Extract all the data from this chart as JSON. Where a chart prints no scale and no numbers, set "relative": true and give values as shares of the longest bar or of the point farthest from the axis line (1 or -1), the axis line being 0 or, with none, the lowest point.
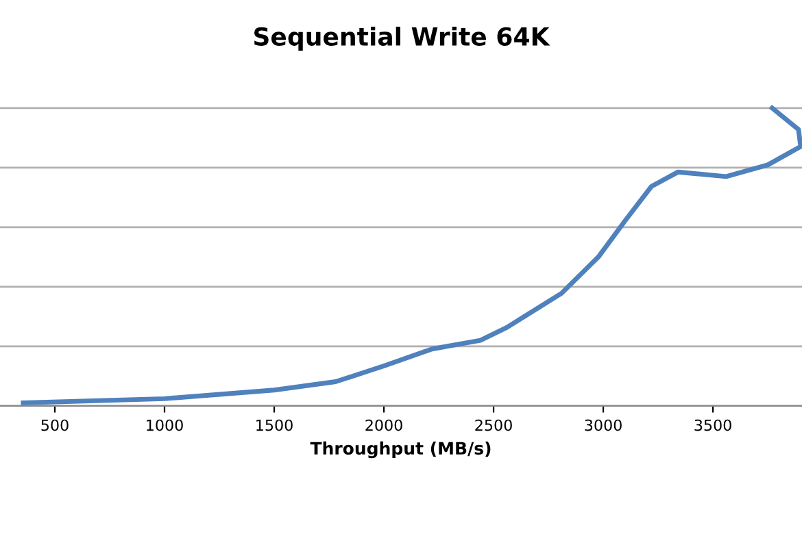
{
  "chart_data": {
    "type": "line",
    "title": "Sequential Write 64K",
    "xlabel": "Throughput (MB/s)",
    "relative": true,
    "xlim": [
      250,
      3906
    ],
    "xticks": [
      500,
      1000,
      1500,
      2000,
      2500,
      3000,
      3500
    ],
    "grid": "y",
    "legend": false,
    "marker": "none",
    "line_style": "solid",
    "series": [
      {
        "color": "#4f81bd",
        "x": [
          356,
          1000,
          1500,
          1780,
          2000,
          2220,
          2440,
          2560,
          2810,
          2980,
          3100,
          3220,
          3340,
          3560,
          3750,
          3900,
          3890,
          3770
        ],
        "values": [
          0.01,
          0.024,
          0.053,
          0.081,
          0.134,
          0.191,
          0.22,
          0.263,
          0.378,
          0.502,
          0.622,
          0.737,
          0.785,
          0.77,
          0.809,
          0.871,
          0.928,
          1
        ]
      }
    ]
  }
}
